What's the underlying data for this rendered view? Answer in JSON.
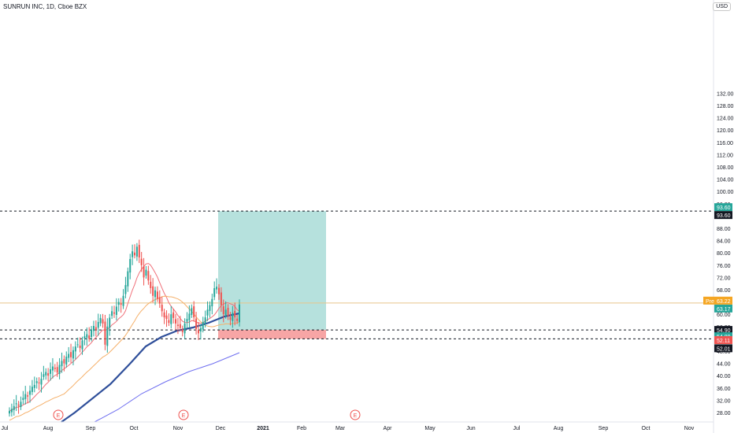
{
  "header": {
    "title": "SUNRUN INC, 1D, Cboe BZX",
    "currency": "USD"
  },
  "colors": {
    "up": "#26a69a",
    "down": "#ef5350",
    "profit_zone": "#b2dfdb",
    "loss_zone": "#f7a0a0",
    "ma_red": "#f0707a",
    "ma_orange": "#f5b06a",
    "ma_navy": "#2f4f9a",
    "ma_purple": "#6f6ff0",
    "price_line": "#e8c58a"
  },
  "chart_data": {
    "type": "candlestick",
    "title": "SUNRUN INC, 1D, Cboe BZX",
    "ylim": [
      26,
      134
    ],
    "y_ticks": [
      "28.00",
      "32.00",
      "36.00",
      "40.00",
      "44.00",
      "48.00",
      "52.00",
      "56.00",
      "60.00",
      "64.00",
      "68.00",
      "72.00",
      "76.00",
      "80.00",
      "84.00",
      "88.00",
      "92.00",
      "96.00",
      "100.00",
      "104.00",
      "108.00",
      "112.00",
      "116.00",
      "120.00",
      "124.00",
      "128.00",
      "132.00"
    ],
    "x_ticks": [
      "Jul",
      "Aug",
      "Sep",
      "Oct",
      "Nov",
      "Dec",
      "2021",
      "Feb",
      "Mar",
      "Apr",
      "May",
      "Jun",
      "Jul",
      "Aug",
      "Sep",
      "Oct",
      "Nov"
    ],
    "closes": [
      28.5,
      29.2,
      30.1,
      31.0,
      30.2,
      31.5,
      32.8,
      34.0,
      33.2,
      35.1,
      36.4,
      37.0,
      38.2,
      37.5,
      39.0,
      40.5,
      41.2,
      40.0,
      42.1,
      43.0,
      42.2,
      41.0,
      43.5,
      44.8,
      44.0,
      46.2,
      47.1,
      46.0,
      48.3,
      49.5,
      50.2,
      49.0,
      51.5,
      52.8,
      53.5,
      52.0,
      55.0,
      56.2,
      55.0,
      57.5,
      58.8,
      57.0,
      50.1,
      56.0,
      58.9,
      61.0,
      60.2,
      62.5,
      64.0,
      63.1,
      66.0,
      69.5,
      74.0,
      78.0,
      80.5,
      79.2,
      82.0,
      78.5,
      76.0,
      72.0,
      74.5,
      71.0,
      68.5,
      66.0,
      67.8,
      65.0,
      63.5,
      61.0,
      59.0,
      58.5,
      57.2,
      60.0,
      58.8,
      57.0,
      56.2,
      55.5,
      54.2,
      57.0,
      58.5,
      60.2,
      62.0,
      59.0,
      55.2,
      53.8,
      55.5,
      57.5,
      59.0,
      61.5,
      63.0,
      65.0,
      68.5,
      69.0,
      66.5,
      63.0,
      60.0,
      61.5,
      59.5,
      58.2,
      60.5,
      59.0,
      57.8,
      63.17
    ],
    "annotations": {
      "target": 93.6,
      "long_entry": 54.9,
      "stop": 52.01,
      "mid_levels": [
        54.89,
        52.11
      ],
      "current_price": 63.17,
      "pre_label": "Pre",
      "pre_value": "63.22",
      "price_labels": [
        "93.60",
        "93.60",
        "63.17",
        "54.90",
        "54.89",
        "52.11",
        "52.01"
      ],
      "earnings_marker": "E"
    }
  }
}
